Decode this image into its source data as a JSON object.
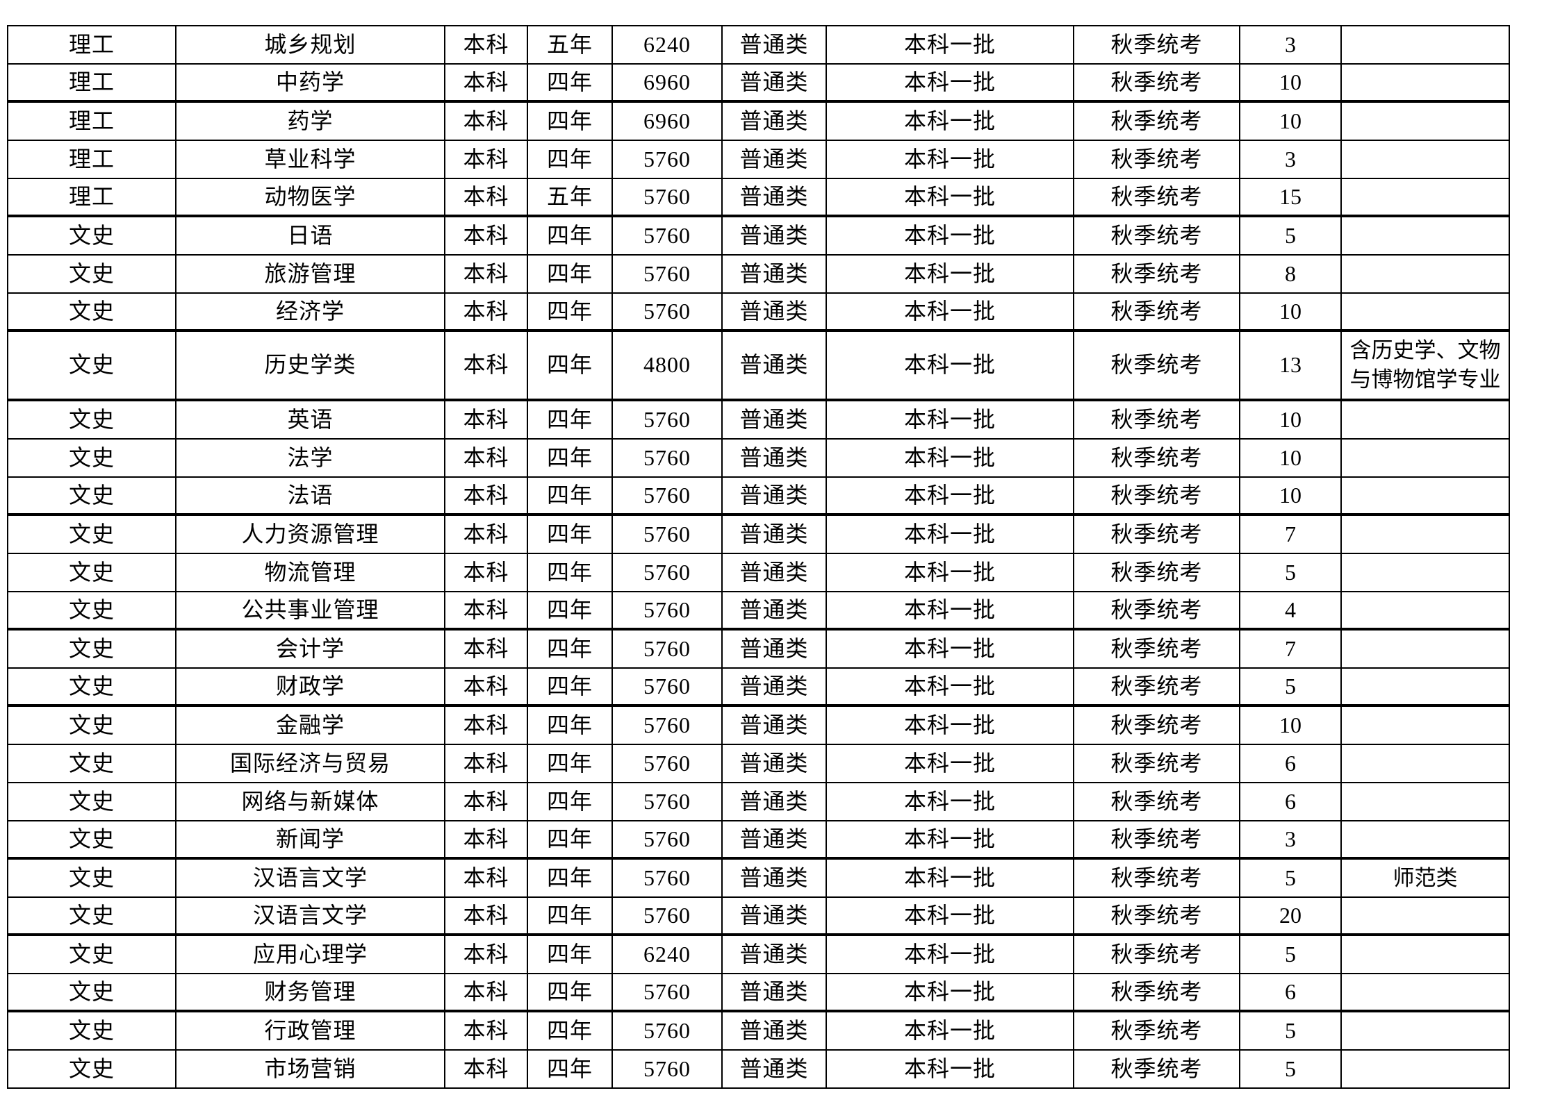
{
  "colors": {
    "background": "#ffffff",
    "border": "#000000",
    "text": "#000000"
  },
  "table": {
    "rows": [
      [
        "理工",
        "城乡规划",
        "本科",
        "五年",
        "6240",
        "普通类",
        "本科一批",
        "秋季统考",
        "3",
        ""
      ],
      [
        "理工",
        "中药学",
        "本科",
        "四年",
        "6960",
        "普通类",
        "本科一批",
        "秋季统考",
        "10",
        ""
      ],
      [
        "理工",
        "药学",
        "本科",
        "四年",
        "6960",
        "普通类",
        "本科一批",
        "秋季统考",
        "10",
        ""
      ],
      [
        "理工",
        "草业科学",
        "本科",
        "四年",
        "5760",
        "普通类",
        "本科一批",
        "秋季统考",
        "3",
        ""
      ],
      [
        "理工",
        "动物医学",
        "本科",
        "五年",
        "5760",
        "普通类",
        "本科一批",
        "秋季统考",
        "15",
        ""
      ],
      [
        "文史",
        "日语",
        "本科",
        "四年",
        "5760",
        "普通类",
        "本科一批",
        "秋季统考",
        "5",
        ""
      ],
      [
        "文史",
        "旅游管理",
        "本科",
        "四年",
        "5760",
        "普通类",
        "本科一批",
        "秋季统考",
        "8",
        ""
      ],
      [
        "文史",
        "经济学",
        "本科",
        "四年",
        "5760",
        "普通类",
        "本科一批",
        "秋季统考",
        "10",
        ""
      ],
      [
        "文史",
        "历史学类",
        "本科",
        "四年",
        "4800",
        "普通类",
        "本科一批",
        "秋季统考",
        "13",
        "含历史学、文物与博物馆学专业"
      ],
      [
        "文史",
        "英语",
        "本科",
        "四年",
        "5760",
        "普通类",
        "本科一批",
        "秋季统考",
        "10",
        ""
      ],
      [
        "文史",
        "法学",
        "本科",
        "四年",
        "5760",
        "普通类",
        "本科一批",
        "秋季统考",
        "10",
        ""
      ],
      [
        "文史",
        "法语",
        "本科",
        "四年",
        "5760",
        "普通类",
        "本科一批",
        "秋季统考",
        "10",
        ""
      ],
      [
        "文史",
        "人力资源管理",
        "本科",
        "四年",
        "5760",
        "普通类",
        "本科一批",
        "秋季统考",
        "7",
        ""
      ],
      [
        "文史",
        "物流管理",
        "本科",
        "四年",
        "5760",
        "普通类",
        "本科一批",
        "秋季统考",
        "5",
        ""
      ],
      [
        "文史",
        "公共事业管理",
        "本科",
        "四年",
        "5760",
        "普通类",
        "本科一批",
        "秋季统考",
        "4",
        ""
      ],
      [
        "文史",
        "会计学",
        "本科",
        "四年",
        "5760",
        "普通类",
        "本科一批",
        "秋季统考",
        "7",
        ""
      ],
      [
        "文史",
        "财政学",
        "本科",
        "四年",
        "5760",
        "普通类",
        "本科一批",
        "秋季统考",
        "5",
        ""
      ],
      [
        "文史",
        "金融学",
        "本科",
        "四年",
        "5760",
        "普通类",
        "本科一批",
        "秋季统考",
        "10",
        ""
      ],
      [
        "文史",
        "国际经济与贸易",
        "本科",
        "四年",
        "5760",
        "普通类",
        "本科一批",
        "秋季统考",
        "6",
        ""
      ],
      [
        "文史",
        "网络与新媒体",
        "本科",
        "四年",
        "5760",
        "普通类",
        "本科一批",
        "秋季统考",
        "6",
        ""
      ],
      [
        "文史",
        "新闻学",
        "本科",
        "四年",
        "5760",
        "普通类",
        "本科一批",
        "秋季统考",
        "3",
        ""
      ],
      [
        "文史",
        "汉语言文学",
        "本科",
        "四年",
        "5760",
        "普通类",
        "本科一批",
        "秋季统考",
        "5",
        "师范类"
      ],
      [
        "文史",
        "汉语言文学",
        "本科",
        "四年",
        "5760",
        "普通类",
        "本科一批",
        "秋季统考",
        "20",
        ""
      ],
      [
        "文史",
        "应用心理学",
        "本科",
        "四年",
        "6240",
        "普通类",
        "本科一批",
        "秋季统考",
        "5",
        ""
      ],
      [
        "文史",
        "财务管理",
        "本科",
        "四年",
        "5760",
        "普通类",
        "本科一批",
        "秋季统考",
        "6",
        ""
      ],
      [
        "文史",
        "行政管理",
        "本科",
        "四年",
        "5760",
        "普通类",
        "本科一批",
        "秋季统考",
        "5",
        ""
      ],
      [
        "文史",
        "市场营销",
        "本科",
        "四年",
        "5760",
        "普通类",
        "本科一批",
        "秋季统考",
        "5",
        ""
      ]
    ]
  }
}
